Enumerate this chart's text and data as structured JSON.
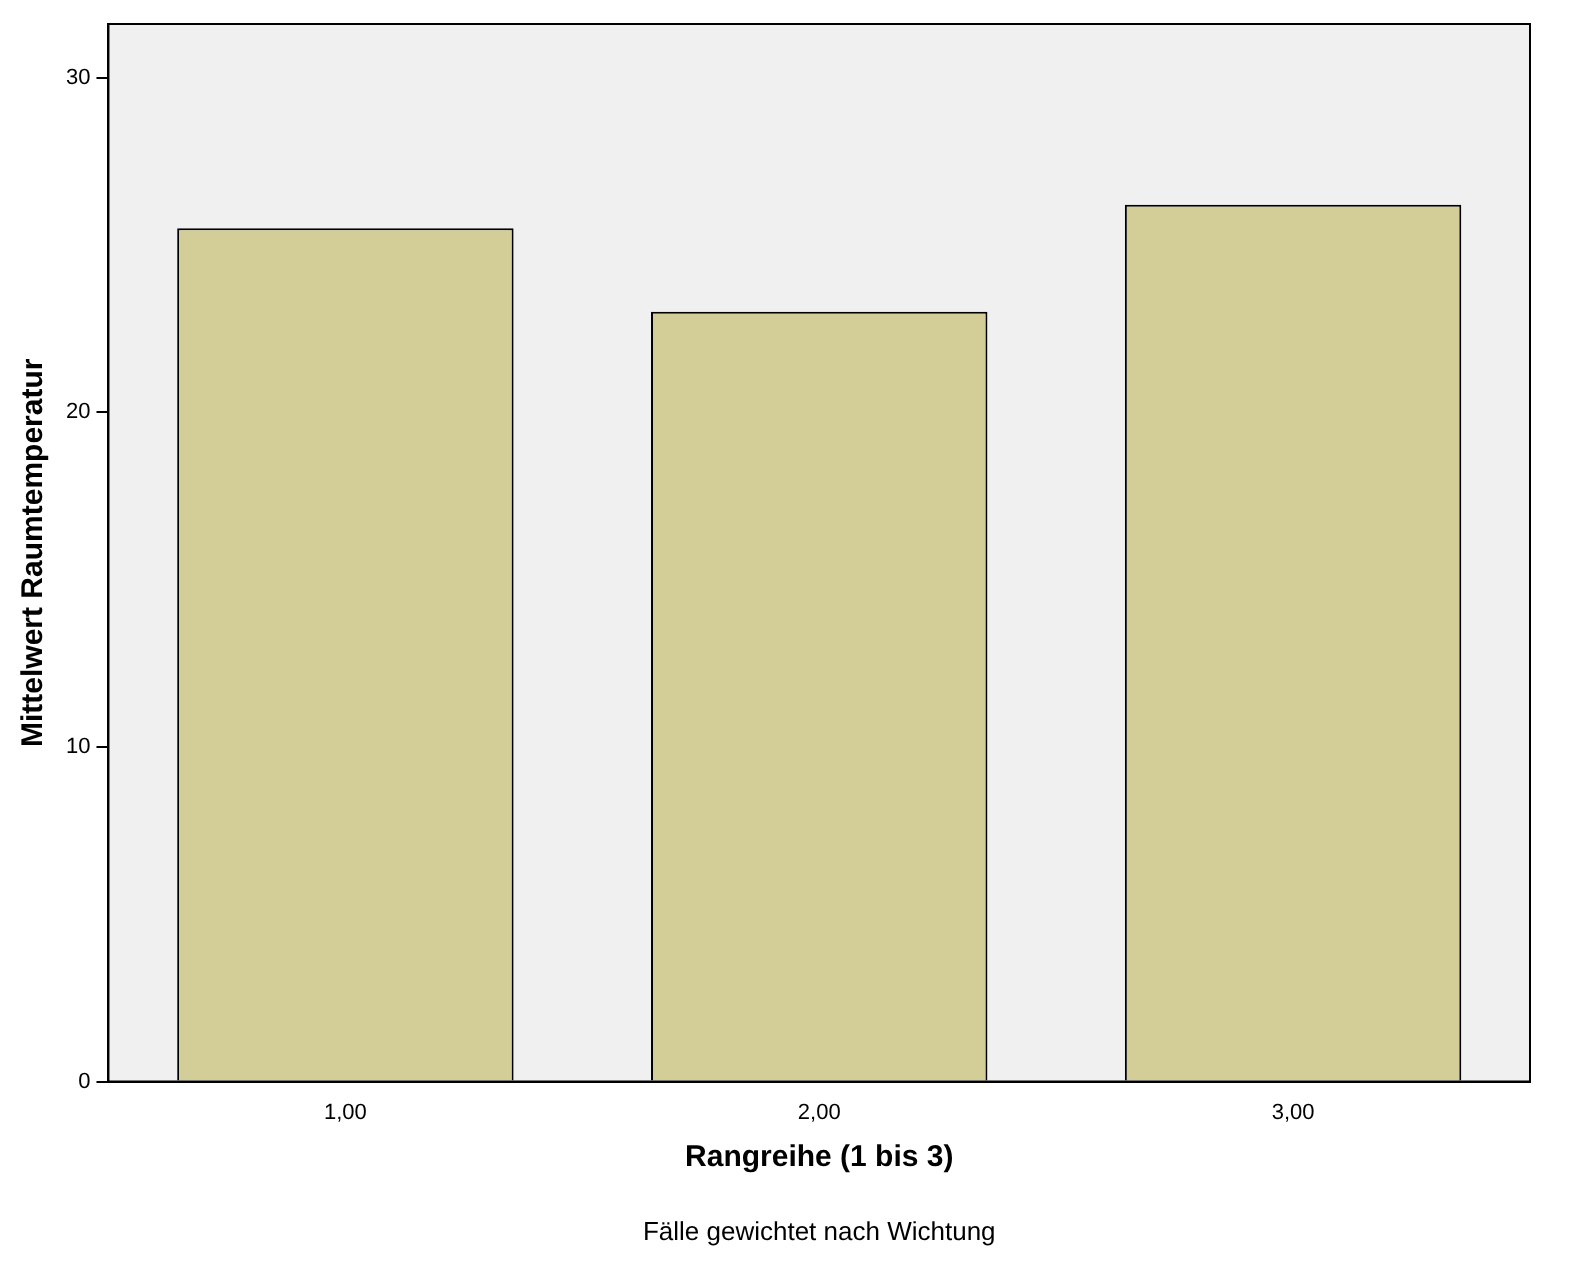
{
  "chart_data": {
    "type": "bar",
    "xlabel": "Rangreihe (1 bis 3)",
    "ylabel": "Mittelwert Raumtemperatur",
    "categories": [
      "1,00",
      "2,00",
      "3,00"
    ],
    "values": [
      25.5,
      23.0,
      26.2
    ],
    "color": "#d3ce97",
    "ylim": [
      0,
      31.6
    ],
    "yticks": [
      0,
      10,
      20,
      30
    ],
    "grid": false,
    "legend": false,
    "annotations": [
      "Fälle gewichtet nach Wichtung"
    ]
  }
}
